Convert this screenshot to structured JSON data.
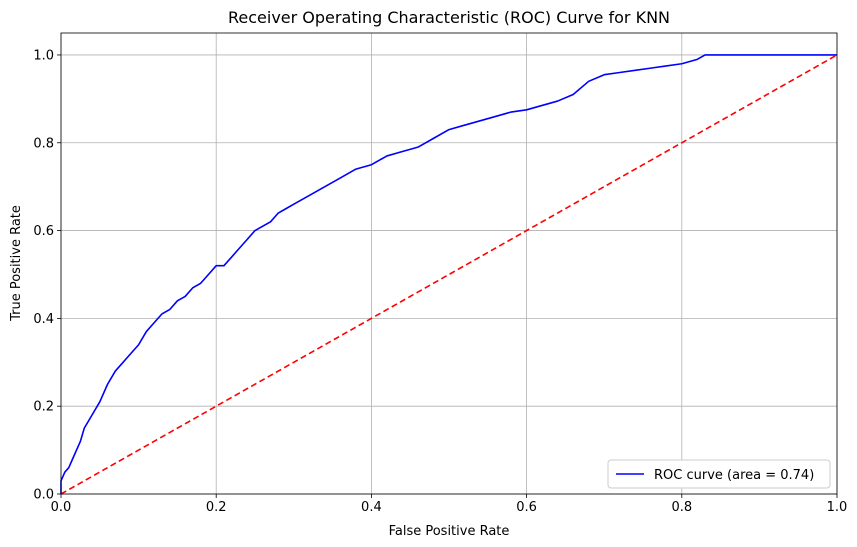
{
  "chart_data": {
    "type": "line",
    "title": "Receiver Operating Characteristic (ROC) Curve for KNN",
    "xlabel": "False Positive Rate",
    "ylabel": "True Positive Rate",
    "xlim": [
      0.0,
      1.0
    ],
    "ylim": [
      0.0,
      1.05
    ],
    "xticks": [
      "0.0",
      "0.2",
      "0.4",
      "0.6",
      "0.8",
      "1.0"
    ],
    "yticks": [
      "0.0",
      "0.2",
      "0.4",
      "0.6",
      "0.8",
      "1.0"
    ],
    "grid": true,
    "legend_position": "lower-right",
    "series": [
      {
        "name": "ROC curve (area = 0.74)",
        "color": "#0000ff",
        "style": "solid",
        "x": [
          0.0,
          0.0,
          0.005,
          0.01,
          0.015,
          0.02,
          0.025,
          0.03,
          0.04,
          0.05,
          0.06,
          0.07,
          0.08,
          0.09,
          0.1,
          0.11,
          0.12,
          0.13,
          0.14,
          0.15,
          0.16,
          0.17,
          0.18,
          0.19,
          0.2,
          0.21,
          0.22,
          0.23,
          0.24,
          0.25,
          0.26,
          0.27,
          0.28,
          0.29,
          0.3,
          0.32,
          0.34,
          0.36,
          0.38,
          0.4,
          0.42,
          0.44,
          0.46,
          0.48,
          0.5,
          0.52,
          0.54,
          0.56,
          0.58,
          0.6,
          0.62,
          0.64,
          0.66,
          0.68,
          0.7,
          0.72,
          0.74,
          0.76,
          0.78,
          0.8,
          0.82,
          0.83,
          0.85,
          0.9,
          0.95,
          1.0
        ],
        "y": [
          0.0,
          0.03,
          0.05,
          0.06,
          0.08,
          0.1,
          0.12,
          0.15,
          0.18,
          0.21,
          0.25,
          0.28,
          0.3,
          0.32,
          0.34,
          0.37,
          0.39,
          0.41,
          0.42,
          0.44,
          0.45,
          0.47,
          0.48,
          0.5,
          0.52,
          0.52,
          0.54,
          0.56,
          0.58,
          0.6,
          0.61,
          0.62,
          0.64,
          0.65,
          0.66,
          0.68,
          0.7,
          0.72,
          0.74,
          0.75,
          0.77,
          0.78,
          0.79,
          0.81,
          0.83,
          0.84,
          0.85,
          0.86,
          0.87,
          0.875,
          0.885,
          0.895,
          0.91,
          0.94,
          0.955,
          0.96,
          0.965,
          0.97,
          0.975,
          0.98,
          0.99,
          1.0,
          1.0,
          1.0,
          1.0,
          1.0
        ]
      },
      {
        "name": "",
        "color": "#ff0000",
        "style": "dashed",
        "x": [
          0.0,
          1.0
        ],
        "y": [
          0.0,
          1.0
        ]
      }
    ]
  }
}
